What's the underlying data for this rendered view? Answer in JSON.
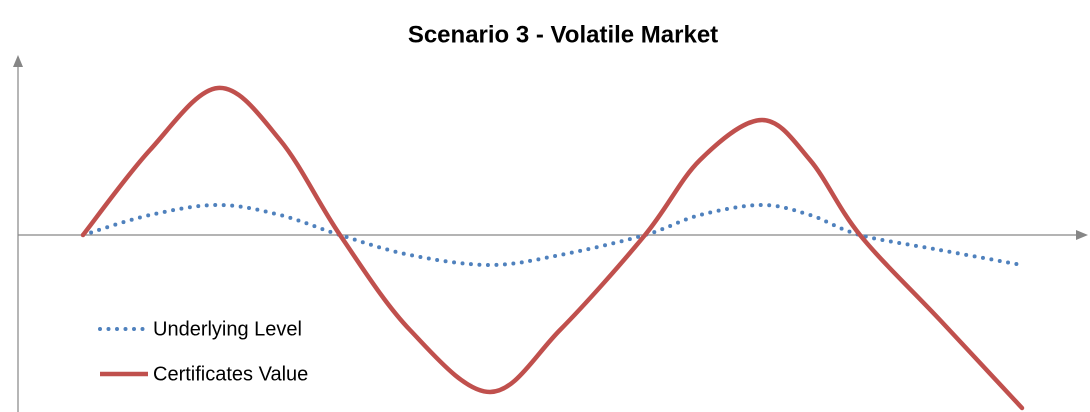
{
  "chart_data": {
    "type": "line",
    "title": "Scenario 3 - Volatile Market",
    "x": [
      0,
      67,
      135,
      197,
      257,
      327,
      407,
      477,
      562,
      617,
      679,
      727,
      777,
      857,
      939
    ],
    "series": [
      {
        "name": "Underlying Level",
        "color": "#4f81bd",
        "style": "dotted",
        "values": [
          0,
          20,
          30,
          20,
          0,
          -20,
          -30,
          -20,
          0,
          20,
          30,
          20,
          0,
          -15,
          -30
        ]
      },
      {
        "name": "Certificates Value",
        "color": "#c0504d",
        "style": "solid",
        "values": [
          0,
          85,
          147,
          95,
          0,
          -95,
          -157,
          -95,
          0,
          75,
          115,
          75,
          0,
          -85,
          -173
        ]
      }
    ],
    "xlim": [
      -65,
      1005
    ],
    "ylim": [
      -177,
      180
    ],
    "legend": "lower left"
  }
}
